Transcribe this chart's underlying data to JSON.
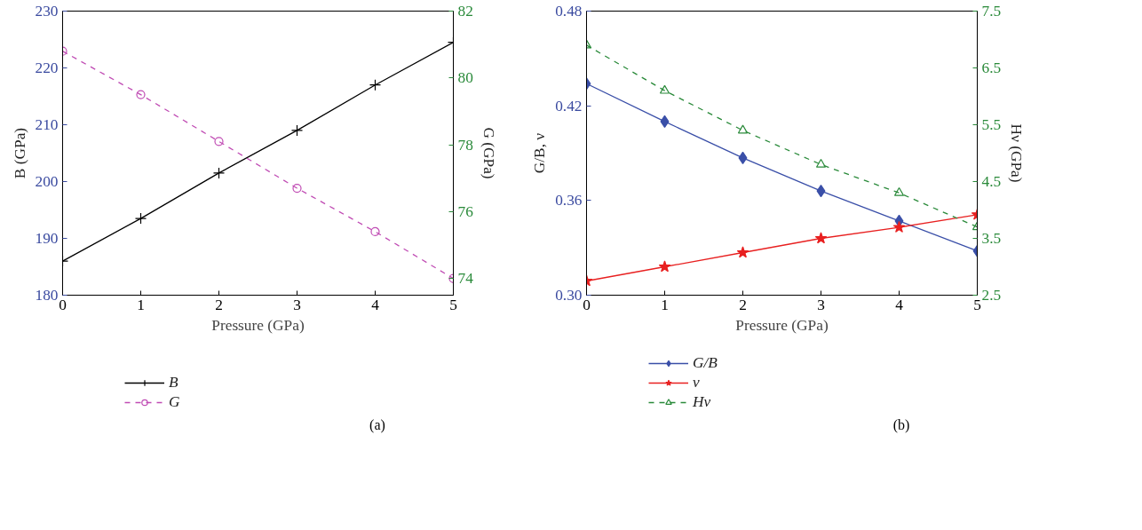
{
  "chart_data": [
    {
      "type": "line",
      "xlabel": "Pressure (GPa)",
      "ylabel": "B (GPa)",
      "y2label": "G (GPa)",
      "x": [
        0,
        1,
        2,
        3,
        4,
        5
      ],
      "xlim": [
        0,
        5
      ],
      "xticks": [
        0,
        1,
        2,
        3,
        4,
        5
      ],
      "ylim": [
        180,
        230
      ],
      "yticks": [
        180,
        190,
        200,
        210,
        220,
        230
      ],
      "y2lim": [
        73.5,
        82
      ],
      "y2ticks": [
        74,
        76,
        78,
        80,
        82
      ],
      "grid": false,
      "legend": "bottom",
      "annotations": [
        "(a)"
      ],
      "series": [
        {
          "name": "B",
          "color": "#000000",
          "marker": "cross",
          "line_style": "solid",
          "values": [
            186,
            193.5,
            201.5,
            209,
            217,
            224.5
          ]
        },
        {
          "name": "G",
          "color": "#c04cb4",
          "marker": "circle",
          "line_style": "dashed",
          "axis": "y2",
          "values": [
            80.8,
            79.5,
            78.1,
            76.7,
            75.4,
            74.0
          ]
        }
      ]
    },
    {
      "type": "line",
      "xlabel": "Pressure (GPa)",
      "ylabel": "G/B, ν",
      "y2label": "Hν (GPa)",
      "x": [
        0,
        1,
        2,
        3,
        4,
        5
      ],
      "xlim": [
        0,
        5
      ],
      "xticks": [
        0,
        1,
        2,
        3,
        4,
        5
      ],
      "ylim": [
        0.3,
        0.48
      ],
      "yticks": [
        {
          "value": 0.3,
          "label": "0.30"
        },
        0.36,
        0.42,
        0.48
      ],
      "y2lim": [
        2.5,
        7.5
      ],
      "y2ticks": [
        2.5,
        3.5,
        4.5,
        5.5,
        6.5,
        7.5
      ],
      "grid": false,
      "legend": "bottom",
      "annotations": [
        "(b)"
      ],
      "series": [
        {
          "name": "G/B",
          "color": "#3a4fa8",
          "marker": "diamond",
          "line_style": "solid",
          "values": [
            0.434,
            0.41,
            0.387,
            0.366,
            0.347,
            0.328
          ]
        },
        {
          "name": "ν",
          "color": "#e82020",
          "marker": "star",
          "line_style": "solid",
          "values": [
            0.309,
            0.318,
            0.327,
            0.336,
            0.343,
            0.351
          ]
        },
        {
          "name": "Hν",
          "color": "#2a8a3a",
          "marker": "triangle",
          "line_style": "dashed",
          "axis": "y2",
          "values": [
            6.9,
            6.1,
            5.4,
            4.8,
            4.3,
            3.7
          ]
        }
      ]
    }
  ]
}
